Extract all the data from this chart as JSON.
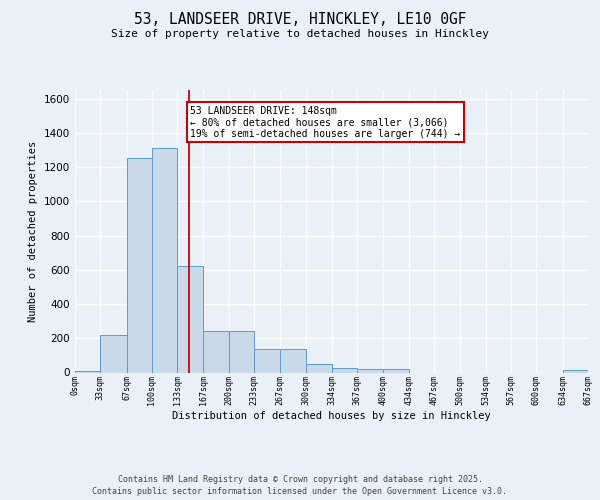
{
  "title": "53, LANDSEER DRIVE, HINCKLEY, LE10 0GF",
  "subtitle": "Size of property relative to detached houses in Hinckley",
  "xlabel": "Distribution of detached houses by size in Hinckley",
  "ylabel": "Number of detached properties",
  "bar_edges": [
    0,
    33,
    67,
    100,
    133,
    167,
    200,
    233,
    267,
    300,
    334,
    367,
    400,
    434,
    467,
    500,
    534,
    567,
    600,
    634,
    667
  ],
  "bar_heights": [
    10,
    220,
    1250,
    1310,
    620,
    240,
    240,
    140,
    140,
    50,
    25,
    20,
    20,
    0,
    0,
    0,
    0,
    0,
    0,
    15
  ],
  "bar_color": "#c9d9e8",
  "bar_edgecolor": "#5b9bd5",
  "vline_x": 148,
  "vline_color": "#cc0000",
  "annotation_text": "53 LANDSEER DRIVE: 148sqm\n← 80% of detached houses are smaller (3,066)\n19% of semi-detached houses are larger (744) →",
  "annotation_box_color": "#ffffff",
  "annotation_box_edgecolor": "#cc0000",
  "ylim": [
    0,
    1650
  ],
  "yticks": [
    0,
    200,
    400,
    600,
    800,
    1000,
    1200,
    1400,
    1600
  ],
  "bg_color": "#eaf0f8",
  "plot_bg_color": "#eaf0f8",
  "grid_color": "#ffffff",
  "tick_labels": [
    "0sqm",
    "33sqm",
    "67sqm",
    "100sqm",
    "133sqm",
    "167sqm",
    "200sqm",
    "233sqm",
    "267sqm",
    "300sqm",
    "334sqm",
    "367sqm",
    "400sqm",
    "434sqm",
    "467sqm",
    "500sqm",
    "534sqm",
    "567sqm",
    "600sqm",
    "634sqm",
    "667sqm"
  ],
  "footer_line1": "Contains HM Land Registry data © Crown copyright and database right 2025.",
  "footer_line2": "Contains public sector information licensed under the Open Government Licence v3.0."
}
